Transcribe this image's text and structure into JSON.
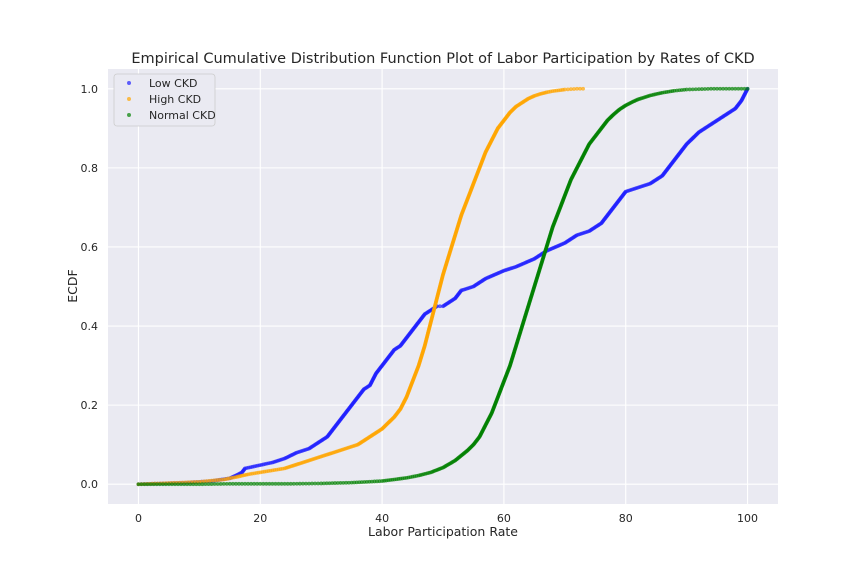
{
  "chart_data": {
    "type": "scatter",
    "title": "Empirical Cumulative Distribution Function Plot of Labor Participation by Rates of CKD",
    "xlabel": "Labor Participation Rate",
    "ylabel": "ECDF",
    "xlim": [
      -5,
      105
    ],
    "ylim": [
      -0.05,
      1.05
    ],
    "xticks": [
      0,
      20,
      40,
      60,
      80,
      100
    ],
    "yticks": [
      0.0,
      0.2,
      0.4,
      0.6,
      0.8,
      1.0
    ],
    "xtick_labels": [
      "0",
      "20",
      "40",
      "60",
      "80",
      "100"
    ],
    "ytick_labels": [
      "0.0",
      "0.2",
      "0.4",
      "0.6",
      "0.8",
      "1.0"
    ],
    "grid": true,
    "background": "#eaeaf2",
    "legend": {
      "position": "top-left"
    },
    "series": [
      {
        "name": "Low CKD",
        "color": "#1f1fff",
        "x": [
          0,
          8,
          12,
          15,
          16,
          17,
          17.5,
          19,
          22,
          24,
          26,
          28,
          30,
          31,
          32,
          33,
          34,
          35,
          36,
          37,
          38,
          39,
          40,
          41,
          42,
          43,
          44,
          45,
          46,
          47,
          48,
          49,
          50,
          51,
          52,
          53,
          55,
          57,
          60,
          62,
          65,
          67,
          70,
          72,
          74,
          76,
          77,
          78,
          79,
          80,
          82,
          84,
          86,
          88,
          90,
          92,
          94,
          96,
          98,
          99,
          100
        ],
        "y": [
          0.0,
          0.004,
          0.008,
          0.015,
          0.022,
          0.03,
          0.04,
          0.045,
          0.055,
          0.065,
          0.08,
          0.09,
          0.11,
          0.12,
          0.14,
          0.16,
          0.18,
          0.2,
          0.22,
          0.24,
          0.25,
          0.28,
          0.3,
          0.32,
          0.34,
          0.35,
          0.37,
          0.39,
          0.41,
          0.43,
          0.44,
          0.45,
          0.45,
          0.46,
          0.47,
          0.49,
          0.5,
          0.52,
          0.54,
          0.55,
          0.57,
          0.59,
          0.61,
          0.63,
          0.64,
          0.66,
          0.68,
          0.7,
          0.72,
          0.74,
          0.75,
          0.76,
          0.78,
          0.82,
          0.86,
          0.89,
          0.91,
          0.93,
          0.95,
          0.97,
          1.0
        ]
      },
      {
        "name": "High CKD",
        "color": "#ffa500",
        "x": [
          0,
          5,
          10,
          14,
          16,
          18,
          20,
          22,
          24,
          26,
          28,
          30,
          32,
          34,
          36,
          38,
          40,
          42,
          43,
          44,
          45,
          46,
          47,
          48,
          49,
          50,
          51,
          52,
          53,
          54,
          55,
          56,
          57,
          58,
          59,
          60,
          61,
          62,
          63,
          64,
          65,
          66,
          67,
          68,
          69,
          70,
          71,
          72,
          73
        ],
        "y": [
          0.0,
          0.003,
          0.006,
          0.012,
          0.018,
          0.025,
          0.03,
          0.035,
          0.04,
          0.05,
          0.06,
          0.07,
          0.08,
          0.09,
          0.1,
          0.12,
          0.14,
          0.17,
          0.19,
          0.22,
          0.26,
          0.3,
          0.35,
          0.41,
          0.47,
          0.53,
          0.58,
          0.63,
          0.68,
          0.72,
          0.76,
          0.8,
          0.84,
          0.87,
          0.9,
          0.92,
          0.94,
          0.955,
          0.965,
          0.975,
          0.982,
          0.987,
          0.991,
          0.994,
          0.996,
          0.998,
          0.999,
          1.0,
          1.0
        ]
      },
      {
        "name": "Normal CKD",
        "color": "#008000",
        "x": [
          0,
          5,
          10,
          15,
          20,
          25,
          30,
          35,
          40,
          42,
          44,
          46,
          48,
          50,
          52,
          54,
          55,
          56,
          57,
          58,
          59,
          60,
          61,
          62,
          63,
          64,
          65,
          66,
          67,
          68,
          69,
          70,
          71,
          72,
          73,
          74,
          75,
          76,
          77,
          78,
          79,
          80,
          81,
          82,
          84,
          86,
          88,
          90,
          92,
          94,
          96,
          98,
          100
        ],
        "y": [
          0.0,
          0.0,
          0.0,
          0.001,
          0.001,
          0.001,
          0.002,
          0.004,
          0.008,
          0.012,
          0.016,
          0.022,
          0.03,
          0.042,
          0.06,
          0.085,
          0.1,
          0.12,
          0.15,
          0.18,
          0.22,
          0.26,
          0.3,
          0.35,
          0.4,
          0.45,
          0.5,
          0.55,
          0.6,
          0.65,
          0.69,
          0.73,
          0.77,
          0.8,
          0.83,
          0.86,
          0.88,
          0.9,
          0.92,
          0.935,
          0.948,
          0.958,
          0.966,
          0.973,
          0.983,
          0.99,
          0.995,
          0.998,
          0.999,
          1.0,
          1.0,
          1.0,
          1.0
        ]
      }
    ]
  }
}
